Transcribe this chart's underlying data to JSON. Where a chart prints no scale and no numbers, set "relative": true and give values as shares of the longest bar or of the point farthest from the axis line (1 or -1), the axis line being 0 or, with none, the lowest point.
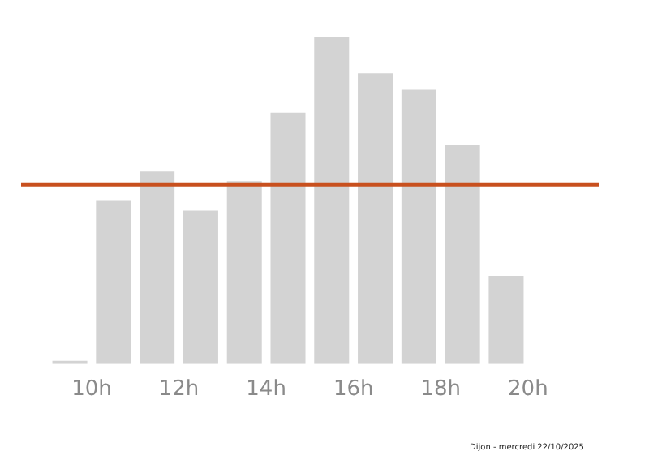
{
  "chart_data": {
    "type": "bar",
    "relative": true,
    "x": [
      9.5,
      10.5,
      11.5,
      12.5,
      13.5,
      14.5,
      15.5,
      16.5,
      17.5,
      18.5,
      19.5
    ],
    "values": [
      0.01,
      0.5,
      0.59,
      0.47,
      0.56,
      0.77,
      1,
      0.89,
      0.84,
      0.67,
      0.27
    ],
    "color": "#d3d3d3",
    "xlim": [
      9,
      20
    ],
    "xticks": [
      {
        "value": 10,
        "label": "10h"
      },
      {
        "value": 12,
        "label": "12h"
      },
      {
        "value": 14,
        "label": "14h"
      },
      {
        "value": 16,
        "label": "16h"
      },
      {
        "value": 18,
        "label": "18h"
      },
      {
        "value": 20,
        "label": "20h"
      }
    ],
    "ref_lines": [
      {
        "axis": "y",
        "value": 0.55,
        "color": "#c8501e"
      }
    ],
    "annotations": [
      "Dijon - mercredi 22/10/2025"
    ]
  }
}
